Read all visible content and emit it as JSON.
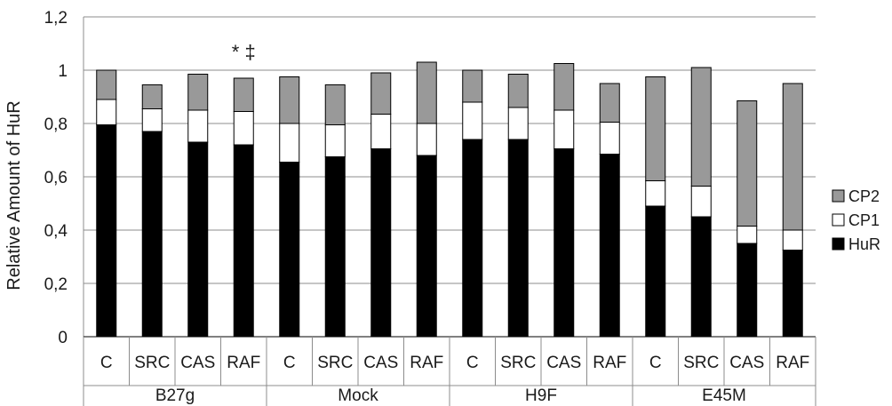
{
  "chart_data": {
    "type": "bar",
    "stacked": true,
    "ylabel": "Relative Amount of HuR",
    "ylim": [
      0,
      1.2
    ],
    "yticks": [
      "0",
      "0,2",
      "0,4",
      "0,6",
      "0,8",
      "1",
      "1,2"
    ],
    "yticks_values": [
      0,
      0.2,
      0.4,
      0.6,
      0.8,
      1.0,
      1.2
    ],
    "grid": true,
    "legend_position": "right",
    "groups": [
      "B27g",
      "Mock",
      "H9F",
      "E45M"
    ],
    "categories": [
      "C",
      "SRC",
      "CAS",
      "RAF",
      "C",
      "SRC",
      "CAS",
      "RAF",
      "C",
      "SRC",
      "CAS",
      "RAF",
      "C",
      "SRC",
      "CAS",
      "RAF"
    ],
    "series": [
      {
        "name": "HuR",
        "color": "#000000",
        "values": [
          0.795,
          0.77,
          0.73,
          0.72,
          0.655,
          0.675,
          0.705,
          0.68,
          0.74,
          0.74,
          0.705,
          0.685,
          0.49,
          0.45,
          0.35,
          0.325
        ]
      },
      {
        "name": "CP1",
        "color": "#ffffff",
        "values": [
          0.095,
          0.085,
          0.12,
          0.125,
          0.145,
          0.12,
          0.13,
          0.12,
          0.14,
          0.12,
          0.145,
          0.12,
          0.095,
          0.115,
          0.065,
          0.075
        ]
      },
      {
        "name": "CP2",
        "color": "#999999",
        "values": [
          0.11,
          0.09,
          0.135,
          0.125,
          0.175,
          0.15,
          0.155,
          0.23,
          0.12,
          0.125,
          0.175,
          0.145,
          0.39,
          0.445,
          0.47,
          0.55
        ]
      }
    ],
    "legend_order": [
      "CP2",
      "CP1",
      "HuR"
    ],
    "annotation": {
      "text": "* ‡",
      "category_index": 3,
      "y": 1.05
    }
  }
}
